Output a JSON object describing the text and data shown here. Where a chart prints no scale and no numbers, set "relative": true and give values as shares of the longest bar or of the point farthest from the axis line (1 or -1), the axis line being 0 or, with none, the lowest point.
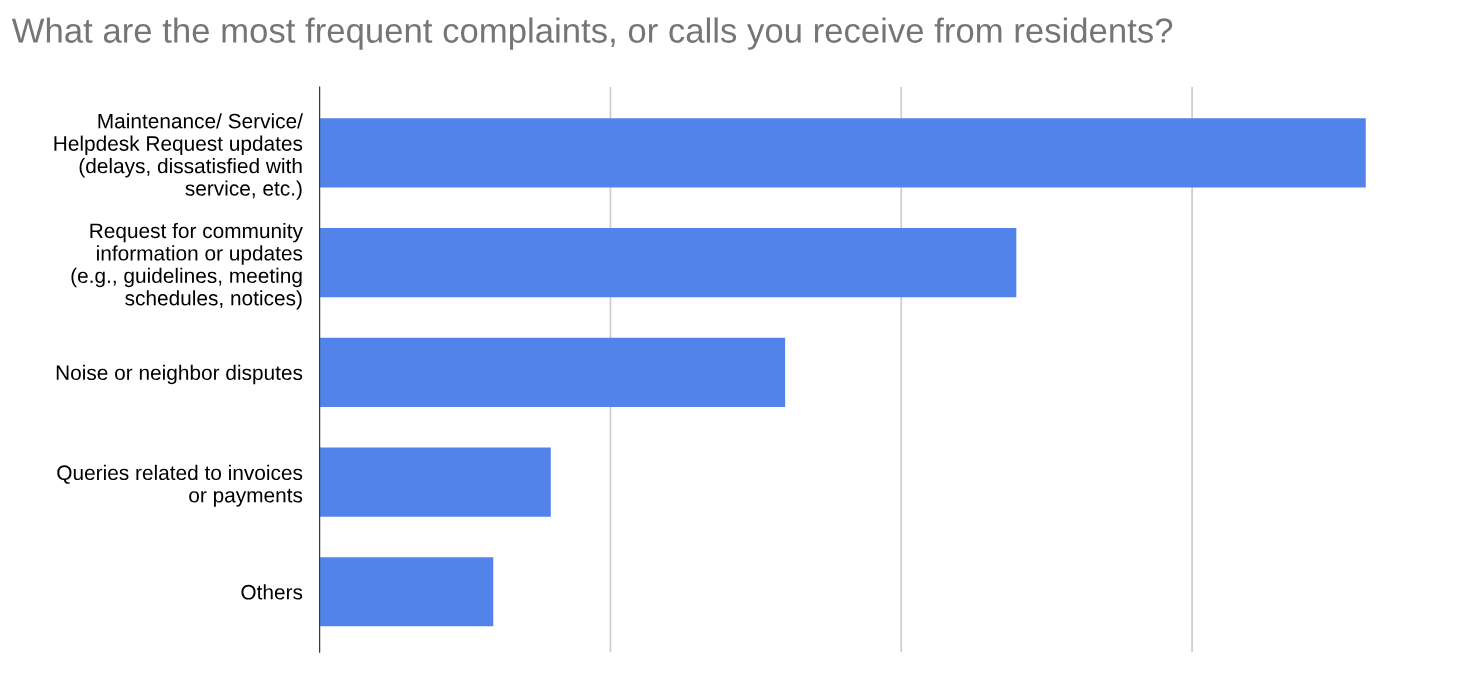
{
  "chart_data": {
    "type": "bar",
    "orientation": "horizontal",
    "relative": true,
    "title": "What are the most frequent complaints, or calls you receive from residents?",
    "categories": [
      "Maintenance/ Service/\nHelpdesk Request updates\n(delays, dissatisfied with\nservice, etc.)",
      "Request for community\ninformation or updates\n(e.g., guidelines, meeting\nschedules, notices)",
      "Noise or neighbor disputes",
      "Queries related to invoices\nor payments",
      "Others"
    ],
    "values": [
      1,
      0.666,
      0.445,
      0.221,
      0.166
    ],
    "color": "#5183eb",
    "grid": "x",
    "tick_labels": "y"
  }
}
